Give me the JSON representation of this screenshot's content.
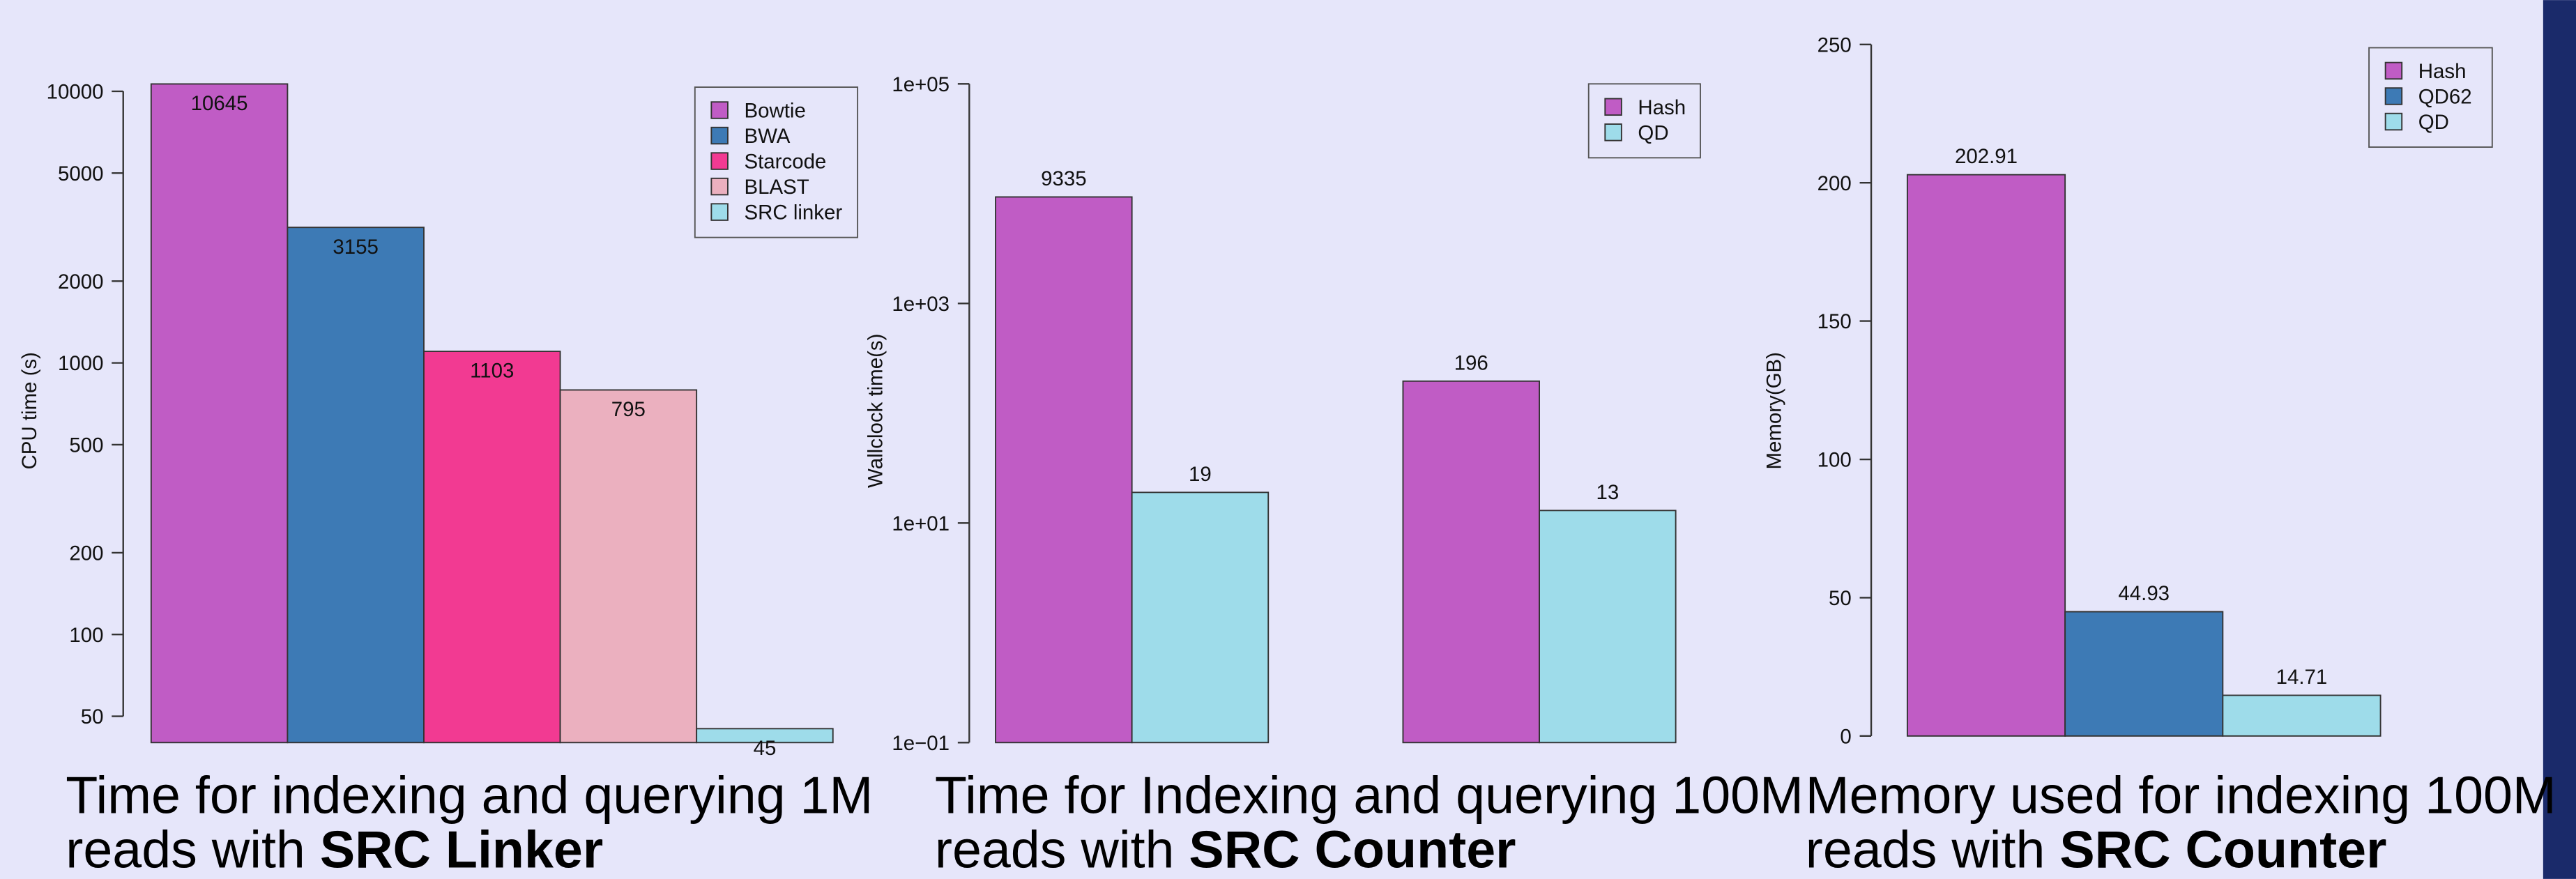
{
  "chart_data": [
    {
      "type": "bar",
      "y_label": "CPU time (s)",
      "log_scale": true,
      "legend": "top right",
      "caption": "Time for indexing and querying 1M reads with ",
      "caption_bold": "SRC Linker",
      "categories": [
        null
      ],
      "series": [
        {
          "name": "Bowtie",
          "color": "#c05cc5",
          "values": [
            10645
          ]
        },
        {
          "name": "BWA",
          "color": "#3d7ab5",
          "values": [
            3155
          ]
        },
        {
          "name": "Starcode",
          "color": "#f23a92",
          "values": [
            1103
          ]
        },
        {
          "name": "BLAST",
          "color": "#ebb0bf",
          "values": [
            795
          ]
        },
        {
          "name": "SRC linker",
          "color": "#9edcea",
          "values": [
            45
          ]
        }
      ],
      "ylim": [
        40,
        11500
      ],
      "yticks": [
        50,
        100,
        200,
        500,
        1000,
        2000,
        5000,
        10000
      ]
    },
    {
      "type": "bar",
      "y_label": "Wallclock time(s)",
      "log_scale": true,
      "legend": "top right",
      "caption": "Time for Indexing and querying 100M reads with ",
      "caption_bold": "SRC Counter",
      "categories": [
        null,
        null
      ],
      "series": [
        {
          "name": "Hash",
          "color": "#c05cc5",
          "values": [
            9335,
            196
          ]
        },
        {
          "name": "QD",
          "color": "#9edcea",
          "values": [
            19,
            13
          ]
        }
      ],
      "ylim": [
        0.1,
        100000
      ],
      "yticks": [
        {
          "value": 0.1,
          "label": "1e−01"
        },
        {
          "value": 10,
          "label": "1e+01"
        },
        {
          "value": 1000,
          "label": "1e+03"
        },
        {
          "value": 100000,
          "label": "1e+05"
        }
      ]
    },
    {
      "type": "bar",
      "y_label": "Memory(GB)",
      "log_scale": false,
      "legend": "top right",
      "caption": "Memory used for indexing 100M reads with ",
      "caption_bold": "SRC Counter",
      "categories": [
        null
      ],
      "series": [
        {
          "name": "Hash",
          "color": "#c05cc5",
          "values": [
            202.91
          ]
        },
        {
          "name": "QD62",
          "color": "#3d7ab5",
          "values": [
            44.93
          ]
        },
        {
          "name": "QD",
          "color": "#9edcea",
          "values": [
            14.71
          ]
        }
      ],
      "ylim": [
        0,
        250
      ],
      "yticks": [
        0,
        50,
        100,
        150,
        200,
        250
      ]
    }
  ]
}
